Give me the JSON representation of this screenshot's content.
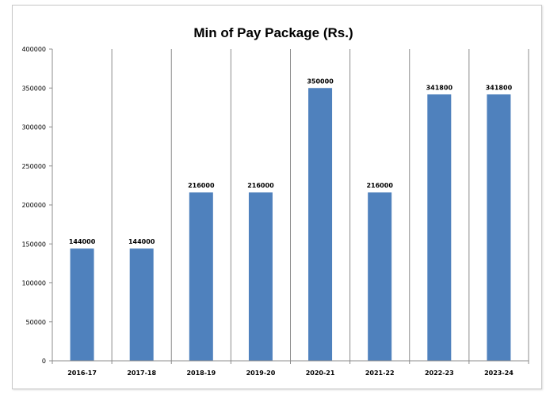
{
  "chart_data": {
    "type": "bar",
    "title": "Min of Pay Package (Rs.)",
    "xlabel": "",
    "ylabel": "",
    "categories": [
      "2016-17",
      "2017-18",
      "2018-19",
      "2019-20",
      "2020-21",
      "2021-22",
      "2022-23",
      "2023-24"
    ],
    "values": [
      144000,
      144000,
      216000,
      216000,
      350000,
      216000,
      341800,
      341800
    ],
    "data_labels": [
      "144000",
      "144000",
      "216000",
      "216000",
      "350000",
      "216000",
      "341800",
      "341800"
    ],
    "ylim": [
      0,
      400000
    ],
    "yticks": [
      "0",
      "50000",
      "100000",
      "150000",
      "200000",
      "250000",
      "300000",
      "350000",
      "400000"
    ],
    "grid": "vertical",
    "legend": "none",
    "bar_color": "#4f81bd"
  }
}
